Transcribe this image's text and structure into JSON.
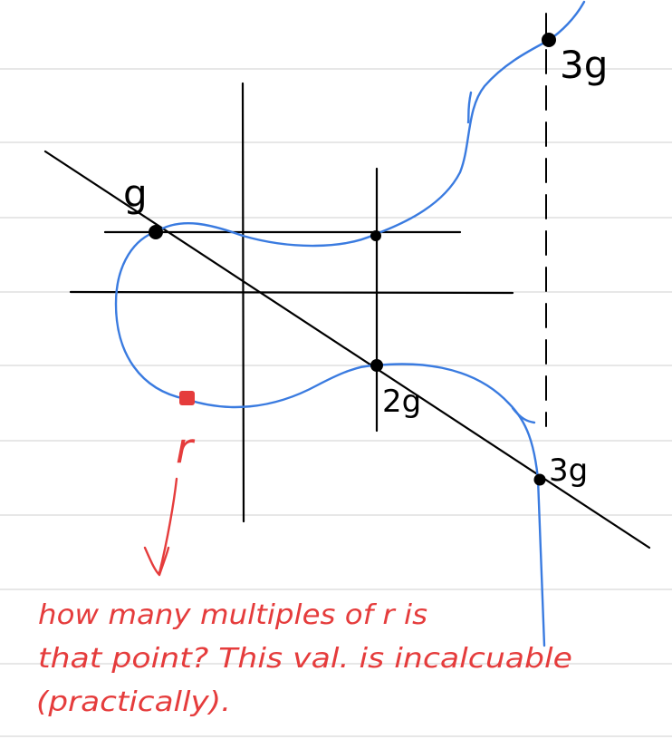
{
  "colors": {
    "ruled_line": "#cfcfcf",
    "ink": "#000000",
    "curve": "#3a7be0",
    "annotation": "#e53c3c"
  },
  "point_labels": {
    "g": "g",
    "two_g": "2g",
    "three_g_bottom": "3g",
    "three_g_top": "3g",
    "r": "r"
  },
  "note": {
    "line1": "how many multiples of r is",
    "line2": "that point? This val. is incalcuable",
    "line3": "(practically)."
  }
}
